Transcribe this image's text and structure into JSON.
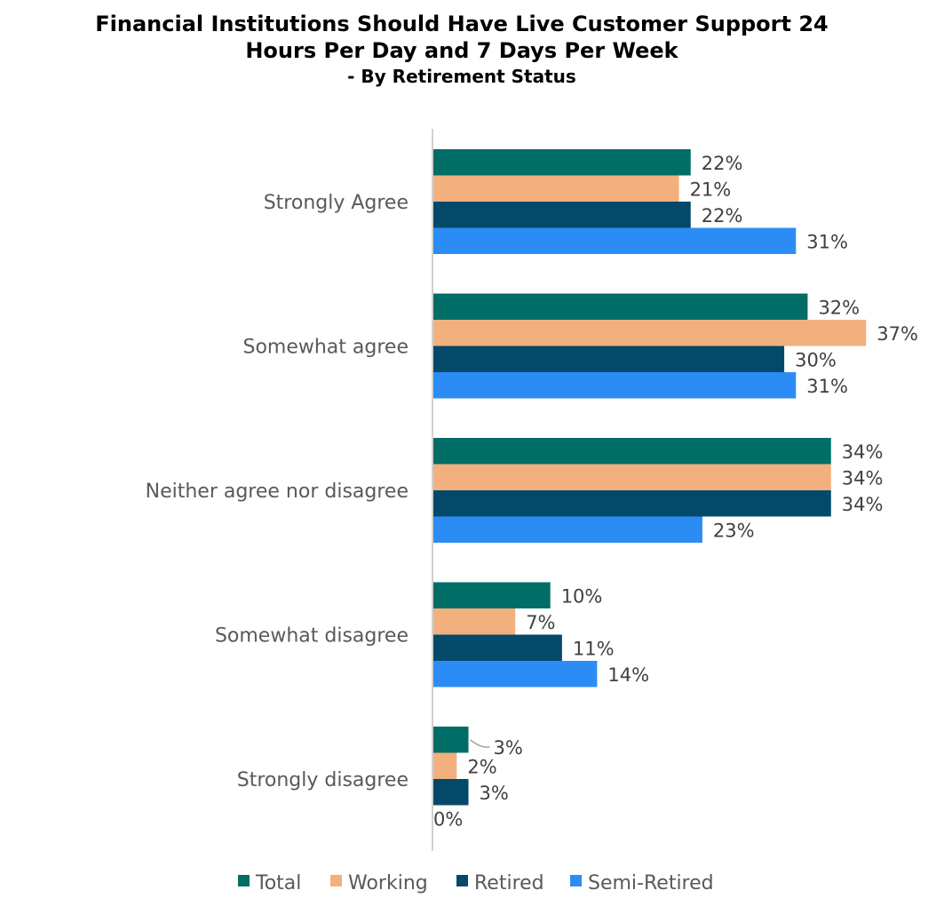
{
  "chart_data": {
    "type": "bar",
    "orientation": "horizontal",
    "title": "Financial Institutions Should Have Live Customer Support 24 Hours Per Day and 7 Days Per Week",
    "title_line1": "Financial Institutions Should Have Live Customer Support 24",
    "title_line2": "Hours Per Day and 7 Days Per Week",
    "subtitle": "- By Retirement Status",
    "categories": [
      "Strongly Agree",
      "Somewhat agree",
      "Neither agree nor disagree",
      "Somewhat disagree",
      "Strongly disagree"
    ],
    "series": [
      {
        "name": "Total",
        "color": "#006E66",
        "values": [
          22,
          32,
          34,
          10,
          3
        ],
        "labels": [
          "22%",
          "32%",
          "34%",
          "10%",
          "3%"
        ]
      },
      {
        "name": "Working",
        "color": "#F2B07E",
        "values": [
          21,
          37,
          34,
          7,
          2
        ],
        "labels": [
          "21%",
          "37%",
          "34%",
          "7%",
          "2%"
        ]
      },
      {
        "name": "Retired",
        "color": "#034A6A",
        "values": [
          22,
          30,
          34,
          11,
          3
        ],
        "labels": [
          "22%",
          "30%",
          "34%",
          "11%",
          "3%"
        ]
      },
      {
        "name": "Semi-Retired",
        "color": "#2C8CF5",
        "values": [
          31,
          31,
          23,
          14,
          0
        ],
        "labels": [
          "31%",
          "31%",
          "23%",
          "14%",
          "0%"
        ]
      }
    ],
    "xlim": [
      0,
      37
    ],
    "grid": false,
    "legend": "bottom",
    "value_format": "percent"
  }
}
